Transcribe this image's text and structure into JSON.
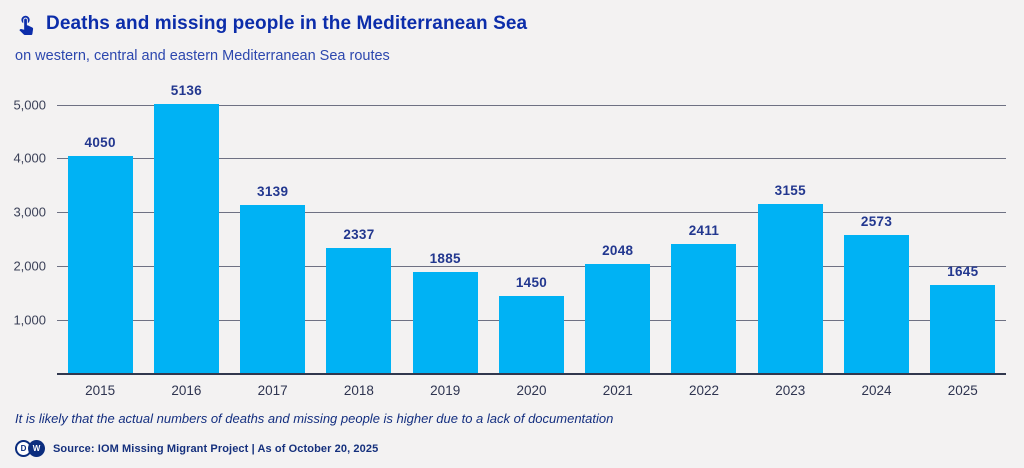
{
  "header": {
    "icon": "tap-hand-icon",
    "title": "Deaths and missing people in the Mediterranean Sea",
    "subtitle": "on western, central and eastern Mediterranean Sea routes"
  },
  "chart_data": {
    "type": "bar",
    "categories": [
      "2015",
      "2016",
      "2017",
      "2018",
      "2019",
      "2020",
      "2021",
      "2022",
      "2023",
      "2024",
      "2025"
    ],
    "values": [
      4050,
      5136,
      3139,
      2337,
      1885,
      1450,
      2048,
      2411,
      3155,
      2573,
      1645
    ],
    "title": "Deaths and missing people in the Mediterranean Sea",
    "subtitle": "on western, central and eastern Mediterranean Sea routes",
    "xlabel": "",
    "ylabel": "",
    "ylim": [
      0,
      5400
    ],
    "yticks": [
      1000,
      2000,
      3000,
      4000,
      5000
    ],
    "ytick_labels": [
      "1,000",
      "2,000",
      "3,000",
      "4,000",
      "5,000"
    ],
    "grid": true,
    "legend_position": "none",
    "bar_color": "#00b2f4",
    "value_label_color": "#22378f"
  },
  "footnote": "It is likely that the actual numbers of deaths and missing people is higher due to a lack of documentation",
  "source": {
    "logo_d": "D",
    "logo_w": "W",
    "text": "Source: IOM Missing Migrant Project | As of October 20, 2025"
  },
  "colors": {
    "background": "#f3f2f2",
    "title": "#0c2daa",
    "subtitle": "#2c47ae",
    "bar": "#00b2f4",
    "gridline": "#565b70",
    "axis_text": "#3b4158",
    "footnote": "#142f80"
  }
}
